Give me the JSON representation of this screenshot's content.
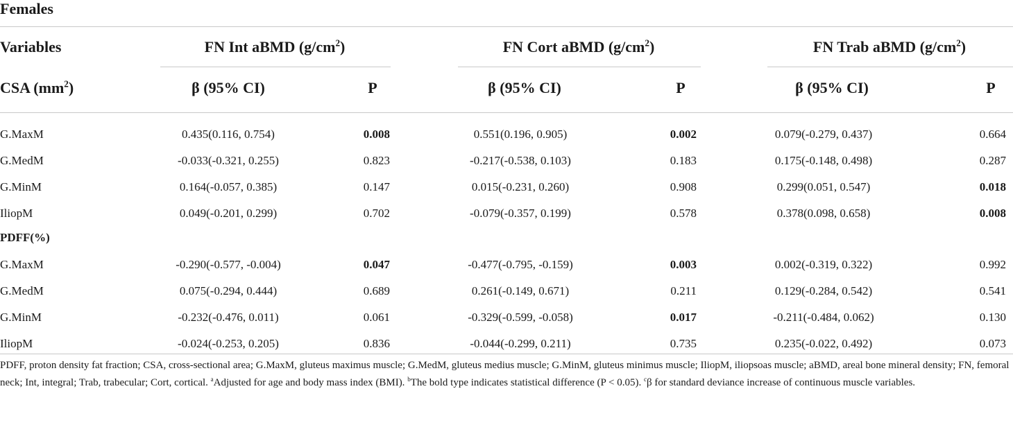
{
  "table": {
    "title": "Females",
    "header": {
      "variables_label": "Variables",
      "group1_label": "FN Int aBMD (g/cm",
      "group2_label": "FN Cort aBMD (g/cm",
      "group3_label": "FN Trab aBMD (g/cm",
      "unit_superscript": "2",
      "unit_close": ")",
      "csa_label": "CSA (mm",
      "csa_close": ")",
      "beta_label": "β (95% CI)",
      "p_label": "P"
    },
    "section_pdff_label": "PDFF(%)",
    "csa_rows": [
      {
        "name": "G.MaxM",
        "b1": "0.435(0.116, 0.754)",
        "p1": "0.008",
        "b2": "0.551(0.196, 0.905)",
        "p2": "0.002",
        "b3": "0.079(-0.279, 0.437)",
        "p3": "0.664"
      },
      {
        "name": "G.MedM",
        "b1": "-0.033(-0.321, 0.255)",
        "p1": "0.823",
        "b2": "-0.217(-0.538, 0.103)",
        "p2": "0.183",
        "b3": "0.175(-0.148, 0.498)",
        "p3": "0.287"
      },
      {
        "name": "G.MinM",
        "b1": "0.164(-0.057, 0.385)",
        "p1": "0.147",
        "b2": "0.015(-0.231, 0.260)",
        "p2": "0.908",
        "b3": "0.299(0.051, 0.547)",
        "p3": "0.018"
      },
      {
        "name": "IliopM",
        "b1": "0.049(-0.201, 0.299)",
        "p1": "0.702",
        "b2": "-0.079(-0.357, 0.199)",
        "p2": "0.578",
        "b3": "0.378(0.098, 0.658)",
        "p3": "0.008"
      }
    ],
    "pdff_rows": [
      {
        "name": "G.MaxM",
        "b1": "-0.290(-0.577, -0.004)",
        "p1": "0.047",
        "b2": "-0.477(-0.795, -0.159)",
        "p2": "0.003",
        "b3": "0.002(-0.319, 0.322)",
        "p3": "0.992"
      },
      {
        "name": "G.MedM",
        "b1": "0.075(-0.294, 0.444)",
        "p1": "0.689",
        "b2": "0.261(-0.149, 0.671)",
        "p2": "0.211",
        "b3": "0.129(-0.284, 0.542)",
        "p3": "0.541"
      },
      {
        "name": "G.MinM",
        "b1": "-0.232(-0.476, 0.011)",
        "p1": "0.061",
        "b2": "-0.329(-0.599, -0.058)",
        "p2": "0.017",
        "b3": "-0.211(-0.484, 0.062)",
        "p3": "0.130"
      },
      {
        "name": "IliopM",
        "b1": "-0.024(-0.253, 0.205)",
        "p1": "0.836",
        "b2": "-0.044(-0.299, 0.211)",
        "p2": "0.735",
        "b3": "0.235(-0.022, 0.492)",
        "p3": "0.073"
      }
    ],
    "bold_cells": [
      "csa_rows.0.p1",
      "csa_rows.0.p2",
      "csa_rows.2.p3",
      "csa_rows.3.p3",
      "pdff_rows.0.p1",
      "pdff_rows.0.p2",
      "pdff_rows.2.p2"
    ]
  },
  "footnote": {
    "text1": "PDFF, proton density fat fraction; CSA, cross-sectional area; G.MaxM, gluteus maximus muscle; G.MedM, gluteus medius muscle; G.MinM, gluteus minimus muscle; IliopM, iliopsoas muscle; aBMD, areal bone mineral density; FN, femoral neck; Int, integral; Trab, trabecular; Cort, cortical. ",
    "sup_a": "a",
    "text2": "Adjusted for age and body mass index (BMI). ",
    "sup_b": "b",
    "text3": "The bold type indicates statistical difference (P < 0.05). ",
    "sup_c": "c",
    "text4": "β for standard deviance increase of continuous muscle variables."
  }
}
